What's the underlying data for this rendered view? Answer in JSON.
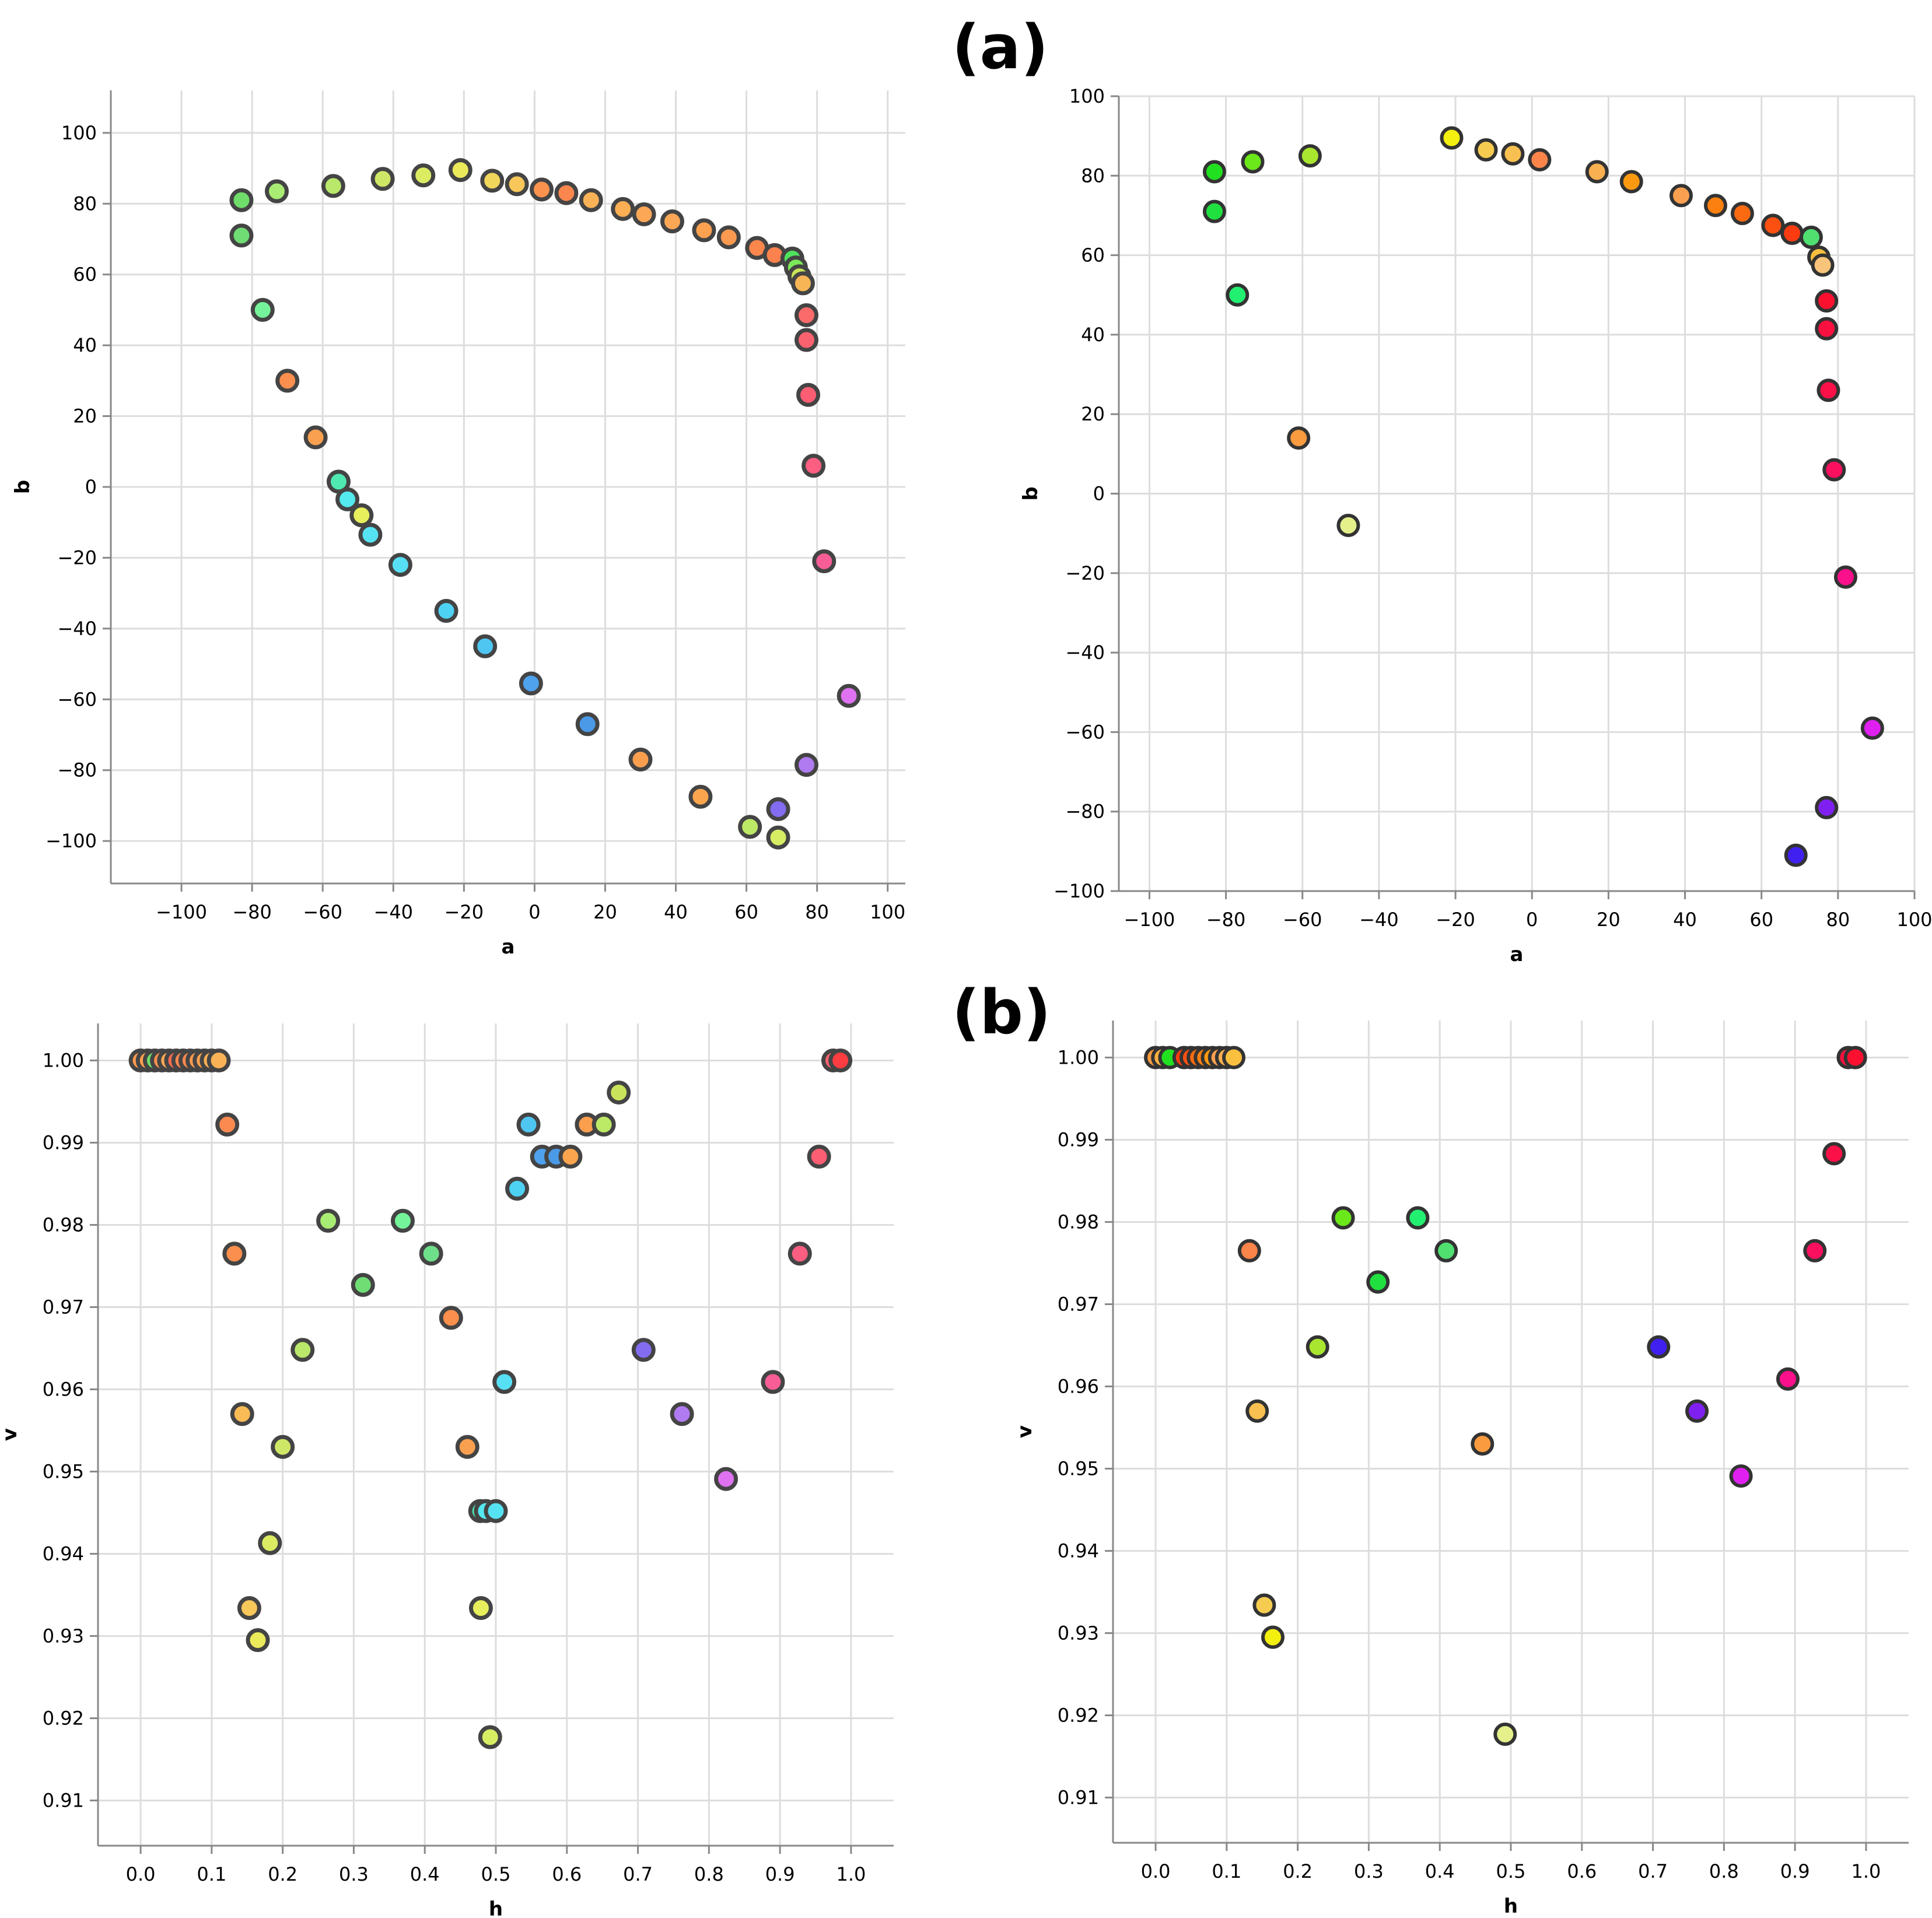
{
  "figure": {
    "label_a": "(a)",
    "label_b": "(b)"
  },
  "chart_data": [
    {
      "id": "a-left",
      "type": "scatter",
      "xlabel": "a",
      "ylabel": "b",
      "xlim": [
        -120,
        105
      ],
      "ylim": [
        -112,
        112
      ],
      "xticks": [
        -100,
        -80,
        -60,
        -40,
        -20,
        0,
        20,
        40,
        60,
        80,
        100
      ],
      "yticks": [
        -100,
        -80,
        -60,
        -40,
        -20,
        0,
        20,
        40,
        60,
        80,
        100
      ],
      "tick_labels_x": [
        "−100",
        "−80",
        "−60",
        "−40",
        "−20",
        "0",
        "20",
        "40",
        "60",
        "80",
        "100"
      ],
      "tick_labels_y": [
        "−100",
        "−80",
        "−60",
        "−40",
        "−20",
        "0",
        "20",
        "40",
        "60",
        "80",
        "100"
      ],
      "points": [
        {
          "x": -83,
          "y": 81,
          "color": "#6fdd6a"
        },
        {
          "x": -83,
          "y": 71,
          "color": "#6fdd74"
        },
        {
          "x": -77,
          "y": 50,
          "color": "#74f39a"
        },
        {
          "x": -73,
          "y": 83.5,
          "color": "#a9ec73"
        },
        {
          "x": -70,
          "y": 30,
          "color": "#fb8f4d"
        },
        {
          "x": -62,
          "y": 14,
          "color": "#f9a050"
        },
        {
          "x": -57,
          "y": 85,
          "color": "#b9e86a"
        },
        {
          "x": -55.5,
          "y": 1.5,
          "color": "#4fe8b0"
        },
        {
          "x": -53,
          "y": -3.5,
          "color": "#54e8ef"
        },
        {
          "x": -49,
          "y": -8,
          "color": "#e7ef5c"
        },
        {
          "x": -46.5,
          "y": -13.5,
          "color": "#55e3f3"
        },
        {
          "x": -43,
          "y": 87,
          "color": "#cfe766"
        },
        {
          "x": -38,
          "y": -22,
          "color": "#56dff5"
        },
        {
          "x": -31.5,
          "y": 88,
          "color": "#dcec62"
        },
        {
          "x": -25,
          "y": -35,
          "color": "#4ed2f4"
        },
        {
          "x": -21,
          "y": 89.5,
          "color": "#eaea5a"
        },
        {
          "x": -14,
          "y": -45,
          "color": "#4fc6f2"
        },
        {
          "x": -12,
          "y": 86.5,
          "color": "#f1d65c"
        },
        {
          "x": -5,
          "y": 85.5,
          "color": "#f7c75a"
        },
        {
          "x": -1,
          "y": -55.5,
          "color": "#4ea2ee"
        },
        {
          "x": 2,
          "y": 84,
          "color": "#fb934e"
        },
        {
          "x": 9,
          "y": 83,
          "color": "#fb874f"
        },
        {
          "x": 16,
          "y": 81,
          "color": "#f9b356"
        },
        {
          "x": 15,
          "y": -67,
          "color": "#4a9ae8"
        },
        {
          "x": 25,
          "y": 78.5,
          "color": "#fbae53"
        },
        {
          "x": 30,
          "y": -77,
          "color": "#fb9f4f"
        },
        {
          "x": 31,
          "y": 77,
          "color": "#fba756"
        },
        {
          "x": 39,
          "y": 75,
          "color": "#fba756"
        },
        {
          "x": 47,
          "y": -87.5,
          "color": "#fba64f"
        },
        {
          "x": 48,
          "y": 72.5,
          "color": "#fba14f"
        },
        {
          "x": 55,
          "y": 70.5,
          "color": "#fb9950"
        },
        {
          "x": 61,
          "y": -96,
          "color": "#bce966"
        },
        {
          "x": 63,
          "y": 67.5,
          "color": "#fb874d"
        },
        {
          "x": 68,
          "y": 65.5,
          "color": "#fb824e"
        },
        {
          "x": 69,
          "y": -91,
          "color": "#836cf0"
        },
        {
          "x": 69,
          "y": -99,
          "color": "#d7ed64"
        },
        {
          "x": 73,
          "y": 64.5,
          "color": "#4fe35d"
        },
        {
          "x": 74,
          "y": 62,
          "color": "#7ae85a"
        },
        {
          "x": 75,
          "y": 59.5,
          "color": "#c9e45a"
        },
        {
          "x": 76,
          "y": 57.5,
          "color": "#f8b555"
        },
        {
          "x": 77,
          "y": 48.5,
          "color": "#fb6b6b"
        },
        {
          "x": 77,
          "y": 41.5,
          "color": "#fb6270"
        },
        {
          "x": 77.5,
          "y": 26,
          "color": "#fb5d73"
        },
        {
          "x": 79,
          "y": 6,
          "color": "#fb5e80"
        },
        {
          "x": 77,
          "y": -78.5,
          "color": "#b07bf0"
        },
        {
          "x": 82,
          "y": -21,
          "color": "#f95d96"
        },
        {
          "x": 89,
          "y": -59,
          "color": "#de72f0"
        }
      ]
    },
    {
      "id": "a-right",
      "type": "scatter",
      "xlabel": "a",
      "ylabel": "b",
      "xlim": [
        -108,
        100
      ],
      "ylim": [
        -100,
        100
      ],
      "xticks": [
        -100,
        -80,
        -60,
        -40,
        -20,
        0,
        20,
        40,
        60,
        80,
        100
      ],
      "yticks": [
        -100,
        -80,
        -60,
        -40,
        -20,
        0,
        20,
        40,
        60,
        80,
        100
      ],
      "tick_labels_x": [
        "−100",
        "−80",
        "−60",
        "−40",
        "−20",
        "0",
        "20",
        "40",
        "60",
        "80",
        "100"
      ],
      "tick_labels_y": [
        "−100",
        "−80",
        "−60",
        "−40",
        "−20",
        "0",
        "20",
        "40",
        "60",
        "80",
        "100"
      ],
      "points": [
        {
          "x": -83,
          "y": 81,
          "color": "#21e020"
        },
        {
          "x": -83,
          "y": 71,
          "color": "#20e040"
        },
        {
          "x": -77,
          "y": 50,
          "color": "#22f070"
        },
        {
          "x": -73,
          "y": 83.5,
          "color": "#6ae81a"
        },
        {
          "x": -61,
          "y": 14,
          "color": "#fb9b40"
        },
        {
          "x": -58,
          "y": 85,
          "color": "#a8e630"
        },
        {
          "x": -48,
          "y": -8,
          "color": "#e5f08a"
        },
        {
          "x": -21,
          "y": 89.5,
          "color": "#f3f010"
        },
        {
          "x": -12,
          "y": 86.5,
          "color": "#f5cc50"
        },
        {
          "x": -5,
          "y": 85.5,
          "color": "#f7c050"
        },
        {
          "x": 2,
          "y": 84,
          "color": "#fb844a"
        },
        {
          "x": 17,
          "y": 81,
          "color": "#f9b050"
        },
        {
          "x": 26,
          "y": 78.5,
          "color": "#fb9a10"
        },
        {
          "x": 39,
          "y": 75,
          "color": "#fba050"
        },
        {
          "x": 48,
          "y": 72.5,
          "color": "#fb8010"
        },
        {
          "x": 55,
          "y": 70.5,
          "color": "#fb6a10"
        },
        {
          "x": 63,
          "y": 67.5,
          "color": "#fb5010"
        },
        {
          "x": 68,
          "y": 65.5,
          "color": "#fb3c10"
        },
        {
          "x": 73,
          "y": 64.5,
          "color": "#50e070"
        },
        {
          "x": 75,
          "y": 59.5,
          "color": "#f9c040"
        },
        {
          "x": 76,
          "y": 57.5,
          "color": "#f7c47a"
        },
        {
          "x": 77,
          "y": 48.5,
          "color": "#fb1030"
        },
        {
          "x": 77,
          "y": 41.5,
          "color": "#fb1040"
        },
        {
          "x": 77.5,
          "y": 26,
          "color": "#fb1048"
        },
        {
          "x": 79,
          "y": 6,
          "color": "#fb1060"
        },
        {
          "x": 82,
          "y": -21,
          "color": "#f9108a"
        },
        {
          "x": 89,
          "y": -59,
          "color": "#e020f0"
        },
        {
          "x": 77,
          "y": -79,
          "color": "#8020f0"
        },
        {
          "x": 69,
          "y": -91,
          "color": "#4020f0"
        }
      ]
    },
    {
      "id": "b-left",
      "type": "scatter",
      "xlabel": "h",
      "ylabel": "v",
      "xlim": [
        -0.06,
        1.06
      ],
      "ylim": [
        0.9045,
        1.0045
      ],
      "xticks": [
        0.0,
        0.1,
        0.2,
        0.3,
        0.4,
        0.5,
        0.6,
        0.7,
        0.8,
        0.9,
        1.0
      ],
      "yticks": [
        0.91,
        0.92,
        0.93,
        0.94,
        0.95,
        0.96,
        0.97,
        0.98,
        0.99,
        1.0
      ],
      "tick_labels_x": [
        "0.0",
        "0.1",
        "0.2",
        "0.3",
        "0.4",
        "0.5",
        "0.6",
        "0.7",
        "0.8",
        "0.9",
        "1.0"
      ],
      "tick_labels_y": [
        "0.91",
        "0.92",
        "0.93",
        "0.94",
        "0.95",
        "0.96",
        "0.97",
        "0.98",
        "0.99",
        "1.00"
      ],
      "points": [
        {
          "x": 0.0,
          "y": 1.0,
          "color": "#fb9a50"
        },
        {
          "x": 0.01,
          "y": 1.0,
          "color": "#fba050"
        },
        {
          "x": 0.02,
          "y": 1.0,
          "color": "#6fdd6a"
        },
        {
          "x": 0.03,
          "y": 1.0,
          "color": "#fb8f4d"
        },
        {
          "x": 0.04,
          "y": 1.0,
          "color": "#fba756"
        },
        {
          "x": 0.05,
          "y": 1.0,
          "color": "#fb6b50"
        },
        {
          "x": 0.06,
          "y": 1.0,
          "color": "#fb874f"
        },
        {
          "x": 0.07,
          "y": 1.0,
          "color": "#fb8a50"
        },
        {
          "x": 0.08,
          "y": 1.0,
          "color": "#fb9950"
        },
        {
          "x": 0.09,
          "y": 1.0,
          "color": "#fba14f"
        },
        {
          "x": 0.1,
          "y": 1.0,
          "color": "#fbae53"
        },
        {
          "x": 0.11,
          "y": 1.0,
          "color": "#f9b356"
        },
        {
          "x": 0.122,
          "y": 0.9922,
          "color": "#fb8a50"
        },
        {
          "x": 0.132,
          "y": 0.9765,
          "color": "#fb8f4d"
        },
        {
          "x": 0.143,
          "y": 0.957,
          "color": "#f9bb56"
        },
        {
          "x": 0.153,
          "y": 0.9334,
          "color": "#f7c75a"
        },
        {
          "x": 0.165,
          "y": 0.9295,
          "color": "#eaea5a"
        },
        {
          "x": 0.182,
          "y": 0.9413,
          "color": "#dcec62"
        },
        {
          "x": 0.2,
          "y": 0.953,
          "color": "#cfe766"
        },
        {
          "x": 0.228,
          "y": 0.9648,
          "color": "#b9e86a"
        },
        {
          "x": 0.264,
          "y": 0.9805,
          "color": "#a9ec73"
        },
        {
          "x": 0.313,
          "y": 0.9727,
          "color": "#6fdd74"
        },
        {
          "x": 0.369,
          "y": 0.9805,
          "color": "#74f39a"
        },
        {
          "x": 0.409,
          "y": 0.9765,
          "color": "#6fe08a"
        },
        {
          "x": 0.437,
          "y": 0.9687,
          "color": "#fb8f4d"
        },
        {
          "x": 0.46,
          "y": 0.953,
          "color": "#f9a050"
        },
        {
          "x": 0.478,
          "y": 0.9452,
          "color": "#4fe8b0"
        },
        {
          "x": 0.486,
          "y": 0.9452,
          "color": "#54e8ef"
        },
        {
          "x": 0.5,
          "y": 0.9452,
          "color": "#55e3f3"
        },
        {
          "x": 0.479,
          "y": 0.9334,
          "color": "#e7ef5c"
        },
        {
          "x": 0.492,
          "y": 0.9177,
          "color": "#d7ed64"
        },
        {
          "x": 0.512,
          "y": 0.9609,
          "color": "#56dff5"
        },
        {
          "x": 0.53,
          "y": 0.9844,
          "color": "#4ed2f4"
        },
        {
          "x": 0.546,
          "y": 0.9922,
          "color": "#4fc6f2"
        },
        {
          "x": 0.565,
          "y": 0.9883,
          "color": "#4ea2ee"
        },
        {
          "x": 0.585,
          "y": 0.9883,
          "color": "#4a9ae8"
        },
        {
          "x": 0.605,
          "y": 0.9883,
          "color": "#fba64f"
        },
        {
          "x": 0.628,
          "y": 0.9922,
          "color": "#fb9f4f"
        },
        {
          "x": 0.652,
          "y": 0.9922,
          "color": "#bce966"
        },
        {
          "x": 0.673,
          "y": 0.9961,
          "color": "#c9e45a"
        },
        {
          "x": 0.708,
          "y": 0.9648,
          "color": "#836cf0"
        },
        {
          "x": 0.762,
          "y": 0.957,
          "color": "#b07bf0"
        },
        {
          "x": 0.824,
          "y": 0.9491,
          "color": "#de72f0"
        },
        {
          "x": 0.89,
          "y": 0.9609,
          "color": "#f95d96"
        },
        {
          "x": 0.928,
          "y": 0.9765,
          "color": "#fb5e80"
        },
        {
          "x": 0.955,
          "y": 0.9883,
          "color": "#fb5d73"
        },
        {
          "x": 0.975,
          "y": 1.0,
          "color": "#fb6270"
        },
        {
          "x": 0.985,
          "y": 1.0,
          "color": "#fb3c40"
        }
      ]
    },
    {
      "id": "b-right",
      "type": "scatter",
      "xlabel": "h",
      "ylabel": "v",
      "xlim": [
        -0.06,
        1.06
      ],
      "ylim": [
        0.9045,
        1.0045
      ],
      "xticks": [
        0.0,
        0.1,
        0.2,
        0.3,
        0.4,
        0.5,
        0.6,
        0.7,
        0.8,
        0.9,
        1.0
      ],
      "yticks": [
        0.91,
        0.92,
        0.93,
        0.94,
        0.95,
        0.96,
        0.97,
        0.98,
        0.99,
        1.0
      ],
      "tick_labels_x": [
        "0.0",
        "0.1",
        "0.2",
        "0.3",
        "0.4",
        "0.5",
        "0.6",
        "0.7",
        "0.8",
        "0.9",
        "1.0"
      ],
      "tick_labels_y": [
        "0.91",
        "0.92",
        "0.93",
        "0.94",
        "0.95",
        "0.96",
        "0.97",
        "0.98",
        "0.99",
        "1.00"
      ],
      "points": [
        {
          "x": 0.0,
          "y": 1.0,
          "color": "#fb9a40"
        },
        {
          "x": 0.01,
          "y": 1.0,
          "color": "#fbb040"
        },
        {
          "x": 0.02,
          "y": 1.0,
          "color": "#21e020"
        },
        {
          "x": 0.04,
          "y": 1.0,
          "color": "#fb3c10"
        },
        {
          "x": 0.05,
          "y": 1.0,
          "color": "#fb5010"
        },
        {
          "x": 0.06,
          "y": 1.0,
          "color": "#fb6a10"
        },
        {
          "x": 0.07,
          "y": 1.0,
          "color": "#fb8010"
        },
        {
          "x": 0.08,
          "y": 1.0,
          "color": "#fb9a10"
        },
        {
          "x": 0.09,
          "y": 1.0,
          "color": "#fba050"
        },
        {
          "x": 0.1,
          "y": 1.0,
          "color": "#f9b050"
        },
        {
          "x": 0.11,
          "y": 1.0,
          "color": "#f9c040"
        },
        {
          "x": 0.132,
          "y": 0.9765,
          "color": "#fb844a"
        },
        {
          "x": 0.143,
          "y": 0.957,
          "color": "#f7c050"
        },
        {
          "x": 0.153,
          "y": 0.9334,
          "color": "#f5cc50"
        },
        {
          "x": 0.165,
          "y": 0.9295,
          "color": "#f3f010"
        },
        {
          "x": 0.228,
          "y": 0.9648,
          "color": "#a8e630"
        },
        {
          "x": 0.264,
          "y": 0.9805,
          "color": "#6ae81a"
        },
        {
          "x": 0.313,
          "y": 0.9727,
          "color": "#20e040"
        },
        {
          "x": 0.369,
          "y": 0.9805,
          "color": "#22f070"
        },
        {
          "x": 0.409,
          "y": 0.9765,
          "color": "#50e070"
        },
        {
          "x": 0.46,
          "y": 0.953,
          "color": "#fb9b40"
        },
        {
          "x": 0.492,
          "y": 0.9177,
          "color": "#e5f08a"
        },
        {
          "x": 0.708,
          "y": 0.9648,
          "color": "#4020f0"
        },
        {
          "x": 0.762,
          "y": 0.957,
          "color": "#8020f0"
        },
        {
          "x": 0.824,
          "y": 0.9491,
          "color": "#e020f0"
        },
        {
          "x": 0.89,
          "y": 0.9609,
          "color": "#f9108a"
        },
        {
          "x": 0.928,
          "y": 0.9765,
          "color": "#fb1060"
        },
        {
          "x": 0.955,
          "y": 0.9883,
          "color": "#fb1048"
        },
        {
          "x": 0.975,
          "y": 1.0,
          "color": "#fb1040"
        },
        {
          "x": 0.985,
          "y": 1.0,
          "color": "#fb1030"
        }
      ]
    }
  ]
}
